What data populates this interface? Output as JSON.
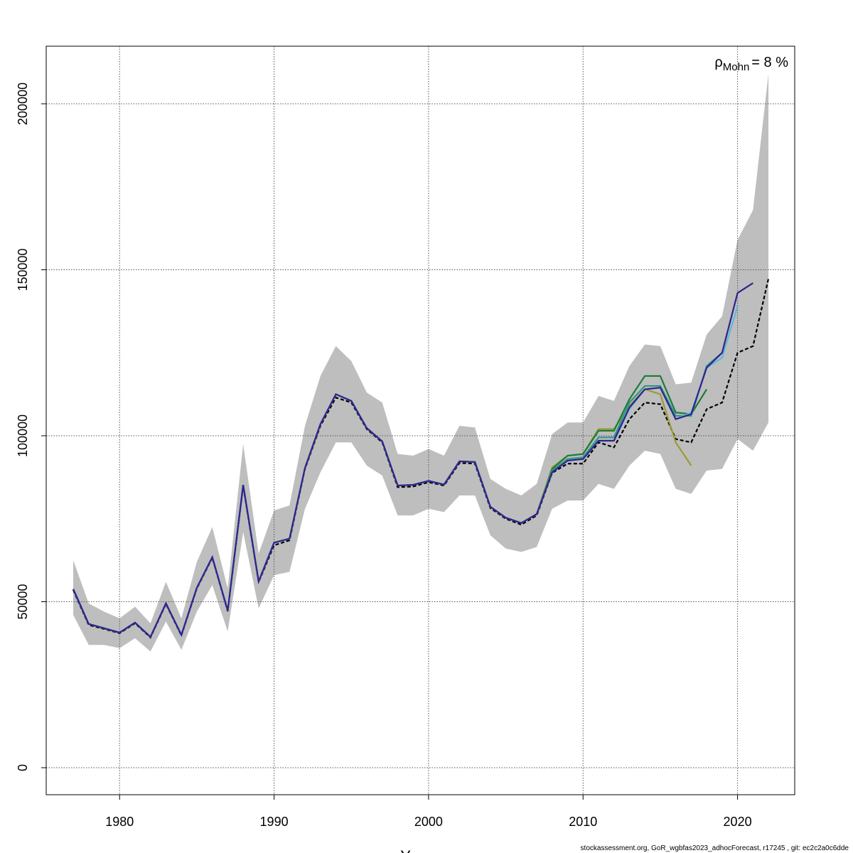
{
  "chart_data": {
    "type": "line",
    "x_label": "Years",
    "annotation": {
      "symbol": "ρ",
      "subscript": "Mohn",
      "text": "= 8 %"
    },
    "footer": "stockassessment.org, GoR_wgbfas2023_adhocForecast, r17245 , git: ec2c2a0c6dde",
    "xlim": [
      1975.25,
      2023.7
    ],
    "ylim": [
      -8137,
      217345
    ],
    "xticks": [
      1980,
      1990,
      2000,
      2010,
      2020
    ],
    "yticks": [
      0,
      50000,
      100000,
      150000,
      200000
    ],
    "grid": true,
    "x": [
      1977,
      1978,
      1979,
      1980,
      1981,
      1982,
      1983,
      1984,
      1985,
      1986,
      1987,
      1988,
      1989,
      1990,
      1991,
      1992,
      1993,
      1994,
      1995,
      1996,
      1997,
      1998,
      1999,
      2000,
      2001,
      2002,
      2003,
      2004,
      2005,
      2006,
      2007,
      2008,
      2009,
      2010,
      2011,
      2012,
      2013,
      2014,
      2015,
      2016,
      2017,
      2018,
      2019,
      2020,
      2021,
      2022
    ],
    "band": {
      "color": "#bebebe",
      "low": [
        46000,
        37000,
        37000,
        36000,
        39000,
        35000,
        44000,
        35500,
        47000,
        55000,
        41000,
        71000,
        48000,
        58000,
        59000,
        78000,
        89000,
        98000,
        98000,
        91000,
        88000,
        76000,
        76000,
        78000,
        77000,
        82000,
        82000,
        70000,
        66000,
        65000,
        66500,
        78000,
        80500,
        80500,
        85500,
        84000,
        91000,
        95500,
        94500,
        84000,
        82500,
        89500,
        90000,
        99000,
        95500,
        104000
      ],
      "high": [
        62500,
        49500,
        47000,
        45000,
        48500,
        43500,
        56000,
        45000,
        62000,
        72500,
        54000,
        97500,
        64500,
        77500,
        79000,
        103000,
        118000,
        127000,
        122500,
        113000,
        110000,
        94500,
        94000,
        96000,
        94000,
        103000,
        102500,
        87000,
        84000,
        82000,
        85500,
        100500,
        104000,
        104000,
        112000,
        110500,
        121000,
        127500,
        127000,
        115500,
        116000,
        130500,
        136000,
        159000,
        168000,
        209000
      ]
    },
    "series": [
      {
        "color": "#000000",
        "dashed": true,
        "values": [
          53500,
          43000,
          41800,
          40500,
          43500,
          39200,
          49300,
          39800,
          54000,
          63200,
          47100,
          84800,
          55900,
          67000,
          68500,
          90000,
          103000,
          111500,
          110000,
          102000,
          98000,
          84500,
          84700,
          86000,
          85000,
          91800,
          91600,
          78200,
          75000,
          73200,
          76000,
          88800,
          91600,
          91600,
          98000,
          96500,
          105000,
          110000,
          109500,
          99000,
          98000,
          108000,
          110000,
          125000,
          127000,
          147300
        ]
      },
      {
        "color": "#9a9a35",
        "values": [
          53800,
          43300,
          42000,
          40700,
          43700,
          39400,
          49500,
          40000,
          54200,
          63400,
          47300,
          85200,
          56100,
          67800,
          69000,
          90300,
          103500,
          112500,
          110500,
          102300,
          98300,
          85000,
          85200,
          86400,
          85300,
          92300,
          92100,
          78600,
          75300,
          73700,
          76400,
          90500,
          94000,
          94500,
          102000,
          102000,
          109000,
          114000,
          112500,
          98000,
          91000,
          null,
          null,
          null,
          null,
          null
        ]
      },
      {
        "color": "#1e7b3a",
        "values": [
          53800,
          43300,
          42000,
          40700,
          43700,
          39400,
          49500,
          40000,
          54200,
          63400,
          47300,
          85200,
          56100,
          67800,
          69000,
          90300,
          103500,
          112500,
          110500,
          102300,
          98300,
          85000,
          85200,
          86400,
          85300,
          92300,
          92100,
          78600,
          75300,
          73700,
          76400,
          90000,
          94000,
          94500,
          101500,
          101500,
          111000,
          118000,
          118000,
          107000,
          106500,
          114000,
          null,
          null,
          null,
          null
        ]
      },
      {
        "color": "#2a9a8a",
        "values": [
          53800,
          43300,
          42000,
          40700,
          43700,
          39400,
          49500,
          40000,
          54200,
          63400,
          47300,
          85200,
          56100,
          67800,
          69000,
          90300,
          103500,
          112500,
          110500,
          102300,
          98300,
          85000,
          85200,
          86400,
          85300,
          92300,
          92100,
          78600,
          75300,
          73700,
          76400,
          89500,
          93000,
          93500,
          99500,
          99500,
          110000,
          115000,
          115000,
          106000,
          106000,
          121000,
          125000,
          null,
          null,
          null
        ]
      },
      {
        "color": "#5bbcd6",
        "values": [
          53800,
          43300,
          42000,
          40700,
          43700,
          39400,
          49500,
          40000,
          54200,
          63400,
          47300,
          85200,
          56100,
          67800,
          69000,
          90300,
          103500,
          112500,
          110500,
          102300,
          98300,
          85000,
          85200,
          86400,
          85300,
          92300,
          92100,
          78600,
          75300,
          73700,
          76400,
          89000,
          92500,
          93000,
          98500,
          98500,
          108000,
          114000,
          114500,
          105000,
          107000,
          120500,
          123500,
          139000,
          null,
          null
        ]
      },
      {
        "color": "#33218f",
        "values": [
          53800,
          43300,
          42000,
          40700,
          43700,
          39400,
          49500,
          40000,
          54200,
          63400,
          47300,
          85200,
          56100,
          67800,
          69000,
          90300,
          103500,
          112500,
          110500,
          102300,
          98300,
          85000,
          85200,
          86400,
          85300,
          92300,
          92100,
          78600,
          75300,
          73700,
          76400,
          89000,
          92500,
          93000,
          98500,
          98500,
          108500,
          114000,
          114500,
          105000,
          106500,
          120500,
          125000,
          143000,
          146000,
          null
        ]
      }
    ]
  }
}
